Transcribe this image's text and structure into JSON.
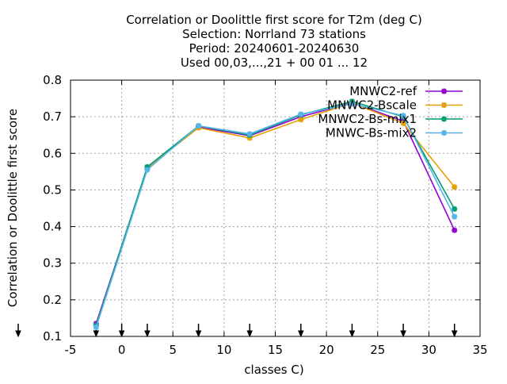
{
  "chart_data": {
    "type": "line",
    "title_lines": [
      "Correlation or Doolittle first score  for T2m (deg C)",
      "Selection: Norrland     73 stations",
      "Period: 20240601-20240630",
      "Used 00,03,...,21 + 00 01 ... 12"
    ],
    "xlabel": "classes C)",
    "ylabel": "Correlation or Doolittle first score",
    "xlim": [
      -5,
      35
    ],
    "ylim": [
      0.1,
      0.8
    ],
    "xticks": [
      -5,
      0,
      5,
      10,
      15,
      20,
      25,
      30,
      35
    ],
    "yticks": [
      0.1,
      0.2,
      0.3,
      0.4,
      0.5,
      0.6,
      0.7,
      0.8
    ],
    "x_tick_labels": [
      "-5",
      "0",
      "5",
      "10",
      "15",
      "20",
      "25",
      "30",
      "35"
    ],
    "y_tick_labels": [
      "0.1",
      "0.2",
      "0.3",
      "0.4",
      "0.5",
      "0.6",
      "0.7",
      "0.8"
    ],
    "grid": true,
    "legend_position": "top-right",
    "arrow_markers_x": [
      -2.5,
      0,
      2.5,
      7.5,
      12.5,
      17.5,
      22.5,
      27.5,
      32.5
    ],
    "x": [
      -2.5,
      2.5,
      7.5,
      12.5,
      17.5,
      22.5,
      27.5,
      32.5
    ],
    "series": [
      {
        "name": "MNWC2-ref",
        "color": "#9400d3",
        "values": [
          0.135,
          0.56,
          0.672,
          0.648,
          0.7,
          0.738,
          0.688,
          0.39
        ]
      },
      {
        "name": "MNWC2-Bscale",
        "color": "#e69f00",
        "values": [
          0.13,
          0.56,
          0.67,
          0.642,
          0.692,
          0.738,
          0.682,
          0.508
        ]
      },
      {
        "name": "MNWC2-Bs-mix1",
        "color": "#009e73",
        "values": [
          0.13,
          0.563,
          0.675,
          0.65,
          0.705,
          0.742,
          0.7,
          0.448
        ]
      },
      {
        "name": "MNWC-Bs-mix2",
        "color": "#56b4e9",
        "values": [
          0.125,
          0.555,
          0.675,
          0.653,
          0.707,
          0.735,
          0.703,
          0.427
        ]
      }
    ]
  }
}
